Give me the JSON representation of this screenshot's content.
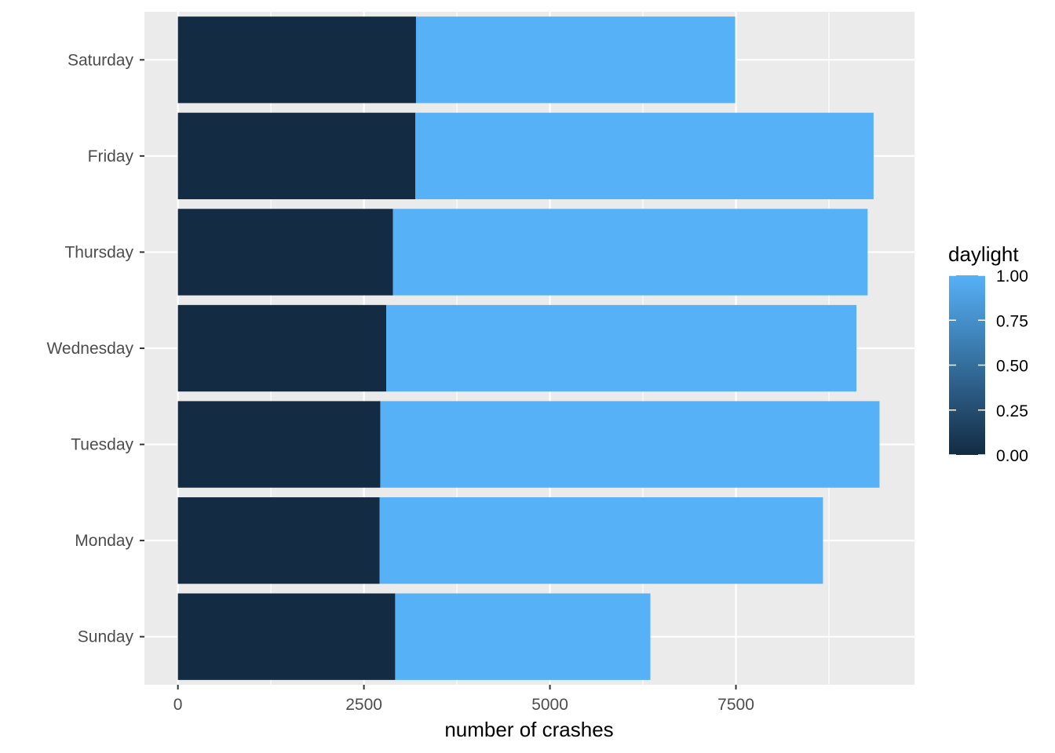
{
  "chart_data": {
    "type": "bar",
    "orientation": "horizontal",
    "stacked": true,
    "categories": [
      "Sunday",
      "Monday",
      "Tuesday",
      "Wednesday",
      "Thursday",
      "Friday",
      "Saturday"
    ],
    "series": [
      {
        "daylight": 0,
        "color": "#132B43",
        "values": [
          2920,
          2710,
          2720,
          2800,
          2890,
          3190,
          3200
        ]
      },
      {
        "daylight": 1,
        "color": "#56B1F7",
        "values": [
          3430,
          5960,
          6710,
          6320,
          6380,
          6160,
          4290
        ]
      }
    ],
    "xlabel": "number of crashes",
    "ylabel": "",
    "xlim": [
      -450,
      9900
    ],
    "xticks": [
      0,
      2500,
      5000,
      7500
    ],
    "grid": true,
    "legend": {
      "title": "daylight",
      "position": "right",
      "low_color": "#132B43",
      "high_color": "#56B1F7",
      "labels": [
        "0.00",
        "0.25",
        "0.50",
        "0.75",
        "1.00"
      ]
    }
  }
}
